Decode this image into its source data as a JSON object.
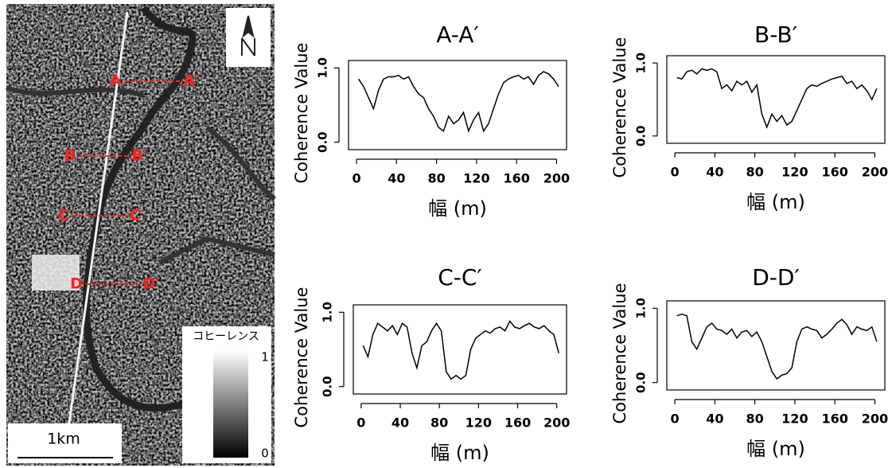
{
  "map": {
    "labels": [
      "A",
      "A′",
      "B",
      "B′",
      "C",
      "C′",
      "D",
      "D′"
    ],
    "scale": "1km",
    "legend": {
      "title": "コヒーレンス",
      "max": 1,
      "min": 0
    }
  },
  "chart_data": [
    {
      "type": "line",
      "title": "A-A′",
      "x_label": "幅 (m)",
      "y_label": "Coherence Value",
      "x": [
        2,
        7,
        12,
        17,
        22,
        27,
        32,
        37,
        42,
        47,
        52,
        57,
        62,
        67,
        72,
        77,
        82,
        87,
        92,
        97,
        102,
        107,
        112,
        117,
        122,
        127,
        132,
        137,
        142,
        147,
        152,
        157,
        162,
        167,
        172,
        177,
        182,
        187,
        192,
        197,
        202
      ],
      "series": [
        {
          "name": "A-A′",
          "color": "#000000",
          "values": [
            0.85,
            0.75,
            0.6,
            0.45,
            0.7,
            0.85,
            0.88,
            0.88,
            0.9,
            0.85,
            0.88,
            0.75,
            0.65,
            0.6,
            0.45,
            0.35,
            0.2,
            0.15,
            0.35,
            0.25,
            0.3,
            0.4,
            0.15,
            0.3,
            0.4,
            0.15,
            0.25,
            0.45,
            0.65,
            0.8,
            0.85,
            0.88,
            0.9,
            0.85,
            0.88,
            0.78,
            0.9,
            0.95,
            0.92,
            0.85,
            0.75
          ]
        }
      ],
      "xlim": [
        -8,
        210
      ],
      "ylim": [
        -0.1,
        1.1
      ],
      "xticks": [
        0,
        40,
        80,
        120,
        160,
        200
      ],
      "yticks": [
        {
          "value": 0,
          "label": "0.0"
        },
        {
          "value": 1,
          "label": "1.0"
        }
      ]
    },
    {
      "type": "line",
      "title": "B-B′",
      "x_label": "幅 (m)",
      "y_label": "Coherence Value",
      "x": [
        2,
        7,
        12,
        17,
        22,
        27,
        32,
        37,
        42,
        47,
        52,
        57,
        62,
        67,
        72,
        77,
        82,
        87,
        92,
        97,
        102,
        107,
        112,
        117,
        122,
        127,
        132,
        137,
        142,
        147,
        152,
        157,
        162,
        167,
        172,
        177,
        182,
        187,
        192,
        197,
        202
      ],
      "series": [
        {
          "name": "B-B′",
          "color": "#000000",
          "values": [
            0.8,
            0.78,
            0.88,
            0.9,
            0.85,
            0.92,
            0.9,
            0.92,
            0.88,
            0.65,
            0.7,
            0.62,
            0.75,
            0.7,
            0.75,
            0.6,
            0.7,
            0.3,
            0.12,
            0.3,
            0.2,
            0.28,
            0.15,
            0.2,
            0.35,
            0.5,
            0.65,
            0.7,
            0.68,
            0.72,
            0.75,
            0.78,
            0.8,
            0.82,
            0.72,
            0.75,
            0.65,
            0.7,
            0.62,
            0.5,
            0.65
          ]
        }
      ],
      "xlim": [
        -8,
        210
      ],
      "ylim": [
        -0.1,
        1.1
      ],
      "xticks": [
        0,
        40,
        80,
        120,
        160,
        200
      ],
      "yticks": [
        {
          "value": 0,
          "label": "0.0"
        },
        {
          "value": 1,
          "label": "1.0"
        }
      ]
    },
    {
      "type": "line",
      "title": "C-C′",
      "x_label": "幅 (m)",
      "y_label": "Coherence Value",
      "x": [
        2,
        7,
        12,
        17,
        22,
        27,
        32,
        37,
        42,
        47,
        52,
        57,
        62,
        67,
        72,
        77,
        82,
        87,
        92,
        97,
        102,
        107,
        112,
        117,
        122,
        127,
        132,
        137,
        142,
        147,
        152,
        157,
        162,
        167,
        172,
        177,
        182,
        187,
        192,
        197,
        202
      ],
      "series": [
        {
          "name": "C-C′",
          "color": "#000000",
          "values": [
            0.55,
            0.4,
            0.7,
            0.85,
            0.8,
            0.75,
            0.82,
            0.7,
            0.85,
            0.8,
            0.45,
            0.25,
            0.55,
            0.6,
            0.75,
            0.85,
            0.75,
            0.2,
            0.1,
            0.15,
            0.1,
            0.15,
            0.5,
            0.65,
            0.7,
            0.75,
            0.72,
            0.78,
            0.8,
            0.75,
            0.88,
            0.8,
            0.78,
            0.82,
            0.85,
            0.8,
            0.78,
            0.82,
            0.75,
            0.7,
            0.45
          ]
        }
      ],
      "xlim": [
        -8,
        210
      ],
      "ylim": [
        -0.1,
        1.1
      ],
      "xticks": [
        0,
        40,
        80,
        120,
        160,
        200
      ],
      "yticks": [
        {
          "value": 0,
          "label": "0.0"
        },
        {
          "value": 1,
          "label": "1.0"
        }
      ]
    },
    {
      "type": "line",
      "title": "D-D′",
      "x_label": "幅 (m)",
      "y_label": "Coherence Value",
      "x": [
        2,
        7,
        12,
        17,
        22,
        27,
        32,
        37,
        42,
        47,
        52,
        57,
        62,
        67,
        72,
        77,
        82,
        87,
        92,
        97,
        102,
        107,
        112,
        117,
        122,
        127,
        132,
        137,
        142,
        147,
        152,
        157,
        162,
        167,
        172,
        177,
        182,
        187,
        192,
        197,
        202
      ],
      "series": [
        {
          "name": "D-D′",
          "color": "#000000",
          "values": [
            0.9,
            0.92,
            0.9,
            0.55,
            0.45,
            0.6,
            0.75,
            0.8,
            0.72,
            0.7,
            0.65,
            0.72,
            0.6,
            0.68,
            0.7,
            0.62,
            0.68,
            0.55,
            0.35,
            0.15,
            0.05,
            0.1,
            0.12,
            0.2,
            0.55,
            0.72,
            0.75,
            0.72,
            0.7,
            0.6,
            0.65,
            0.72,
            0.8,
            0.85,
            0.78,
            0.65,
            0.75,
            0.72,
            0.7,
            0.75,
            0.55
          ]
        }
      ],
      "xlim": [
        -8,
        210
      ],
      "ylim": [
        -0.1,
        1.1
      ],
      "xticks": [
        0,
        40,
        80,
        120,
        160,
        200
      ],
      "yticks": [
        {
          "value": 0,
          "label": "0.0"
        },
        {
          "value": 1,
          "label": "1.0"
        }
      ]
    }
  ]
}
